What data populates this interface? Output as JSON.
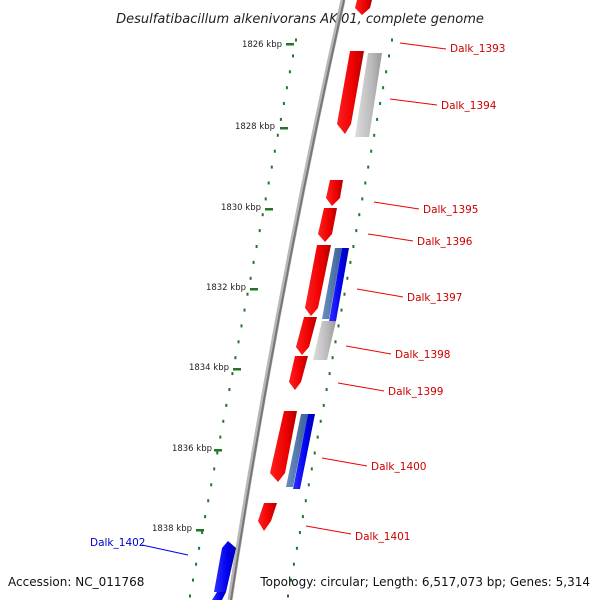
{
  "title": "Desulfatibacillum alkenivorans AK-01, complete genome",
  "footer": {
    "accession": "Accession: NC_011768",
    "summary": "Topology: circular; Length: 6,517,073 bp; Genes: 5,314"
  },
  "colors": {
    "forward_gene": "#ee0000",
    "reverse_gene": "#0000ee",
    "pseudo_gene": "#bbbbbb",
    "forward_label": "#cc0000",
    "reverse_label": "#0000cc",
    "tick": "#227722",
    "backbone": "#888888"
  },
  "ticks": [
    {
      "label": "1826 kbp"
    },
    {
      "label": "1828 kbp"
    },
    {
      "label": "1830 kbp"
    },
    {
      "label": "1832 kbp"
    },
    {
      "label": "1834 kbp"
    },
    {
      "label": "1836 kbp"
    },
    {
      "label": "1838 kbp"
    }
  ],
  "genes": [
    {
      "label": "Dalk_1393",
      "strand": "forward"
    },
    {
      "label": "Dalk_1394",
      "strand": "forward"
    },
    {
      "label": "Dalk_1395",
      "strand": "forward"
    },
    {
      "label": "Dalk_1396",
      "strand": "forward"
    },
    {
      "label": "Dalk_1397",
      "strand": "forward"
    },
    {
      "label": "Dalk_1398",
      "strand": "forward"
    },
    {
      "label": "Dalk_1399",
      "strand": "forward"
    },
    {
      "label": "Dalk_1400",
      "strand": "forward"
    },
    {
      "label": "Dalk_1401",
      "strand": "forward"
    },
    {
      "label": "Dalk_1402",
      "strand": "reverse"
    }
  ]
}
